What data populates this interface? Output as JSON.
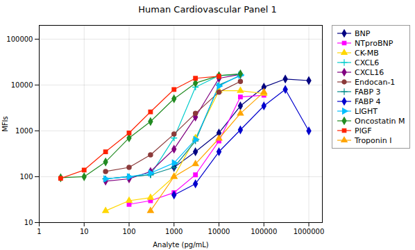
{
  "chart_data": {
    "type": "line",
    "title": "Human Cardiovascular Panel 1",
    "xlabel": "Analyte (pg/mL)",
    "ylabel": "MFIs",
    "log": true,
    "grid": true,
    "legend": "right",
    "xlim": [
      1,
      2000000
    ],
    "ylim": [
      10,
      200000
    ],
    "xticks": [
      1,
      10,
      100,
      1000,
      10000,
      100000,
      1000000
    ],
    "yticks": [
      10,
      100,
      1000,
      10000,
      100000
    ],
    "series": [
      {
        "name": "BNP",
        "color": "#000080",
        "marker": "diamond",
        "x": [
          1000,
          3000,
          10000,
          30000,
          100000,
          300000,
          1000000
        ],
        "values": [
          160,
          350,
          900,
          3500,
          9000,
          13500,
          12500
        ]
      },
      {
        "name": "NTproBNP",
        "color": "#FF00FF",
        "marker": "square",
        "x": [
          100,
          300,
          1000,
          3000,
          10000,
          30000,
          100000
        ],
        "values": [
          25,
          30,
          45,
          110,
          600,
          5500,
          6000
        ]
      },
      {
        "name": "CK-MB",
        "color": "#FFD700",
        "marker": "triangle",
        "x": [
          30,
          100,
          300,
          1000,
          3000,
          10000,
          30000,
          100000
        ],
        "values": [
          18,
          30,
          35,
          100,
          700,
          7500,
          7500,
          6500
        ]
      },
      {
        "name": "CXCL6",
        "color": "#00CCCC",
        "marker": "plus",
        "x": [
          30,
          100,
          300,
          1000,
          3000,
          10000,
          30000
        ],
        "values": [
          90,
          100,
          110,
          700,
          9000,
          16000,
          17000
        ]
      },
      {
        "name": "CXCL16",
        "color": "#800080",
        "marker": "diamond",
        "x": [
          30,
          100,
          300,
          1000,
          3000,
          10000,
          30000
        ],
        "values": [
          80,
          90,
          130,
          400,
          2000,
          14000,
          17000
        ]
      },
      {
        "name": "Endocan-1",
        "color": "#8B3A3A",
        "marker": "circle",
        "x": [
          30,
          100,
          300,
          1000,
          3000,
          10000,
          30000
        ],
        "values": [
          130,
          160,
          300,
          850,
          2400,
          7000,
          12000
        ]
      },
      {
        "name": "FABP 3",
        "color": "#008B8B",
        "marker": "plus",
        "x": [
          30,
          100,
          300,
          1000,
          3000,
          10000,
          30000
        ],
        "values": [
          90,
          100,
          110,
          160,
          600,
          10000,
          16000
        ]
      },
      {
        "name": "FABP 4",
        "color": "#0000CD",
        "marker": "diamond",
        "x": [
          1000,
          3000,
          10000,
          30000,
          100000,
          300000,
          1000000
        ],
        "values": [
          40,
          70,
          350,
          1050,
          3500,
          8000,
          1000
        ]
      },
      {
        "name": "LIGHT",
        "color": "#00BFFF",
        "marker": "triangle_right",
        "x": [
          30,
          100,
          300,
          1000,
          3000,
          10000,
          30000
        ],
        "values": [
          90,
          100,
          120,
          200,
          650,
          9500,
          16500
        ]
      },
      {
        "name": "Oncostatin M",
        "color": "#228B22",
        "marker": "diamond",
        "x": [
          3,
          10,
          30,
          100,
          300,
          1000,
          3000,
          10000,
          30000
        ],
        "values": [
          95,
          100,
          210,
          700,
          1600,
          5000,
          11000,
          16000,
          17500
        ]
      },
      {
        "name": "PlGF",
        "color": "#FF2200",
        "marker": "square",
        "x": [
          3,
          10,
          30,
          100,
          300,
          1000,
          3000,
          10000
        ],
        "values": [
          92,
          140,
          350,
          900,
          2600,
          8000,
          14000,
          15500
        ]
      },
      {
        "name": "Troponin I",
        "color": "#FFA500",
        "marker": "triangle",
        "x": [
          300,
          1000,
          3000,
          10000,
          30000,
          100000
        ],
        "values": [
          18,
          100,
          190,
          680,
          2400,
          7000
        ]
      }
    ]
  }
}
